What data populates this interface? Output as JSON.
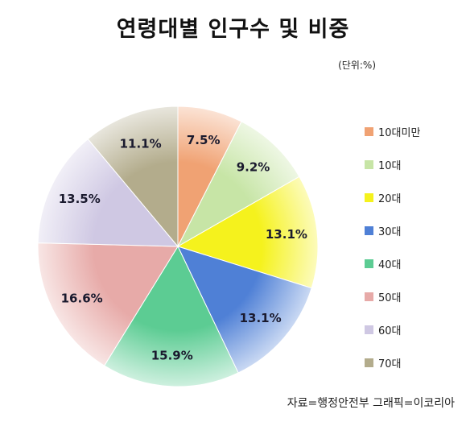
{
  "title": "연령대별 인구수 및 비중",
  "unit": "(단위:%)",
  "source": "자료=행정안전부 그래픽=이코리아",
  "chart_data": {
    "type": "pie",
    "start_angle_deg": 0,
    "direction": "clockwise",
    "legend_position": "right",
    "categories": [
      "10대미만",
      "10대",
      "20대",
      "30대",
      "40대",
      "50대",
      "60대",
      "70대"
    ],
    "values": [
      7.5,
      9.2,
      13.1,
      13.1,
      15.9,
      16.6,
      13.5,
      11.1
    ],
    "labels": [
      "7.5%",
      "9.2%",
      "13.1%",
      "13.1%",
      "15.9%",
      "16.6%",
      "13.5%",
      "11.1%"
    ],
    "colors": [
      "#f0a273",
      "#c7e5a6",
      "#f5f21d",
      "#4f80d6",
      "#5ccc93",
      "#e7aaa8",
      "#cfc8e3",
      "#b3ac8c"
    ]
  }
}
